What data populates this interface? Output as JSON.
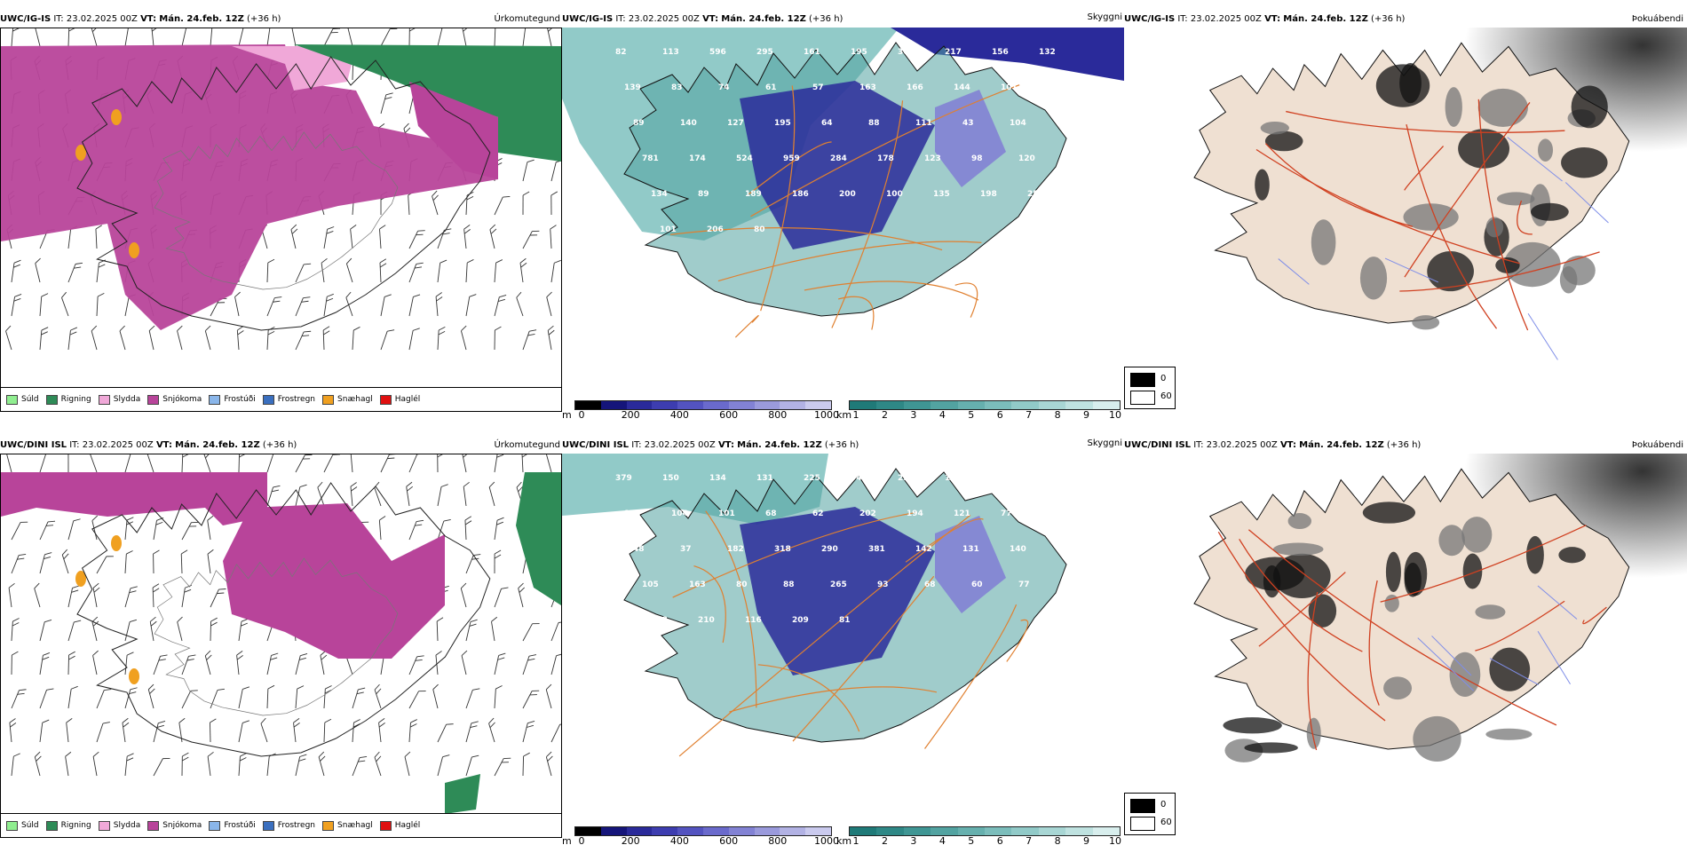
{
  "rows": [
    {
      "model": "UWC/IG-IS",
      "it_label": "IT:",
      "it_value": "23.02.2025 00Z",
      "vt_label": "VT:",
      "vt_value": "Mán. 24.feb. 12Z",
      "lead": "(+36 h)",
      "fields": [
        "Úrkomutegund",
        "Skyggni",
        "Þokuábendi"
      ],
      "cloud_labels": [
        "UWC/IG-IS",
        "..."
      ]
    },
    {
      "model": "UWC/DINI ISL",
      "it_label": "IT:",
      "it_value": "23.02.2025 00Z",
      "vt_label": "VT:",
      "vt_value": "Mán. 24.feb. 12Z",
      "lead": "(+36 h)",
      "fields": [
        "Úrkomutegund",
        "Skyggni",
        "Þokuábendi"
      ]
    }
  ],
  "precip_legend": [
    {
      "label": "Súld",
      "color": "#90ee90"
    },
    {
      "label": "Rigning",
      "color": "#2e8b57"
    },
    {
      "label": "Slydda",
      "color": "#f0a8d8"
    },
    {
      "label": "Snjókoma",
      "color": "#b8449a"
    },
    {
      "label": "Frostúði",
      "color": "#8ab6ea"
    },
    {
      "label": "Frostregn",
      "color": "#3a6fbf"
    },
    {
      "label": "Snæhagl",
      "color": "#f0a020"
    },
    {
      "label": "Haglél",
      "color": "#e01010"
    }
  ],
  "visibility_m_bar": {
    "unit": "m",
    "ticks": [
      "0",
      "200",
      "400",
      "600",
      "800",
      "1000"
    ],
    "colors": [
      "#000000",
      "#15157a",
      "#2a2a9a",
      "#3d3db0",
      "#5353c0",
      "#6a6acc",
      "#8282d4",
      "#9a9adc",
      "#b2b2e4",
      "#cacaee"
    ]
  },
  "visibility_km_bar": {
    "unit": "km",
    "ticks": [
      "1",
      "2",
      "3",
      "4",
      "5",
      "6",
      "7",
      "8",
      "9",
      "10"
    ],
    "colors": [
      "#1f7a78",
      "#2e8886",
      "#3f9694",
      "#52a3a1",
      "#66b0ae",
      "#7bbdbb",
      "#91cac8",
      "#a8d6d4",
      "#bfe2e0",
      "#d8eeed"
    ]
  },
  "fog_legend": {
    "top_label": "0",
    "top_color": "#000000",
    "bottom_label": "60",
    "bottom_color": "#ffffff"
  },
  "vis_labels_row1": [
    "82",
    "113",
    "596",
    "295",
    "161",
    "195",
    "306",
    "217",
    "156",
    "132",
    "139",
    "83",
    "74",
    "61",
    "57",
    "163",
    "166",
    "144",
    "101",
    "58",
    "89",
    "140",
    "127",
    "195",
    "64",
    "88",
    "111",
    "43",
    "104",
    "377",
    "781",
    "174",
    "524",
    "959",
    "284",
    "178",
    "123",
    "98",
    "120",
    "267",
    "134",
    "89",
    "189",
    "186",
    "200",
    "100",
    "135",
    "198",
    "258",
    "333",
    "101",
    "206",
    "80"
  ],
  "vis_labels_row2": [
    "379",
    "150",
    "134",
    "131",
    "225",
    "94",
    "235",
    "130",
    "99",
    "28",
    "159",
    "104",
    "101",
    "68",
    "62",
    "202",
    "194",
    "121",
    "77",
    "69",
    "48",
    "37",
    "182",
    "318",
    "290",
    "381",
    "142",
    "131",
    "140",
    "93",
    "105",
    "163",
    "80",
    "88",
    "265",
    "93",
    "68",
    "60",
    "77",
    "163",
    "398",
    "210",
    "116",
    "209",
    "81"
  ]
}
